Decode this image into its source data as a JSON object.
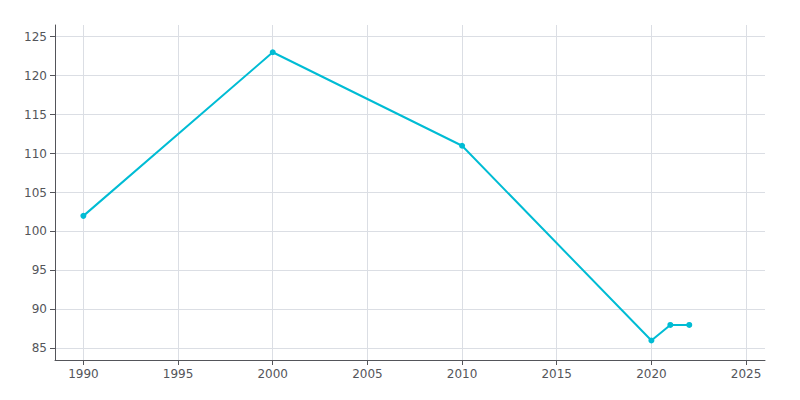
{
  "chart_data": {
    "type": "line",
    "x": [
      1990,
      2000,
      2010,
      2020,
      2021,
      2022
    ],
    "values": [
      102,
      123,
      111,
      86,
      88,
      88
    ],
    "color": "#00bcd4",
    "marker": "circle",
    "xlim": [
      1988.5,
      2026
    ],
    "ylim": [
      83.5,
      126.5
    ],
    "xticks": [
      1990,
      1995,
      2000,
      2005,
      2010,
      2015,
      2020,
      2025
    ],
    "yticks": [
      85,
      90,
      95,
      100,
      105,
      110,
      115,
      120,
      125
    ],
    "grid": true
  }
}
